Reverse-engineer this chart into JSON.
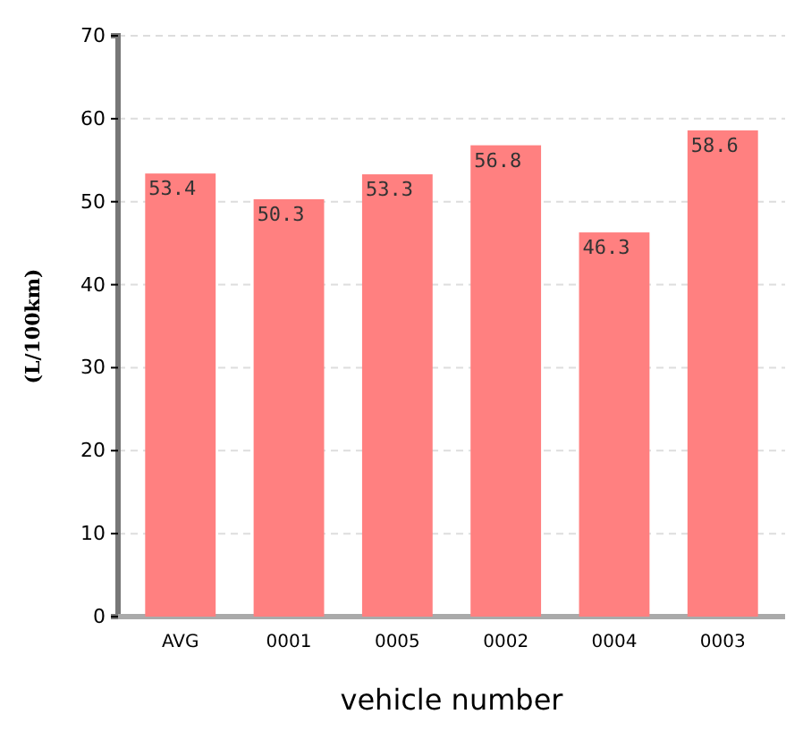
{
  "chart_data": {
    "type": "bar",
    "xlabel": "vehicle number",
    "ylabel": "(L/100km)",
    "categories": [
      "AVG",
      "0001",
      "0005",
      "0002",
      "0004",
      "0003"
    ],
    "values": [
      53.4,
      50.3,
      53.3,
      56.8,
      46.3,
      58.6
    ],
    "color": "#ff8080",
    "ylim": [
      0,
      70
    ],
    "yticks": [
      0,
      10,
      20,
      30,
      40,
      50,
      60,
      70
    ],
    "grid": "y",
    "data_labels": true
  }
}
